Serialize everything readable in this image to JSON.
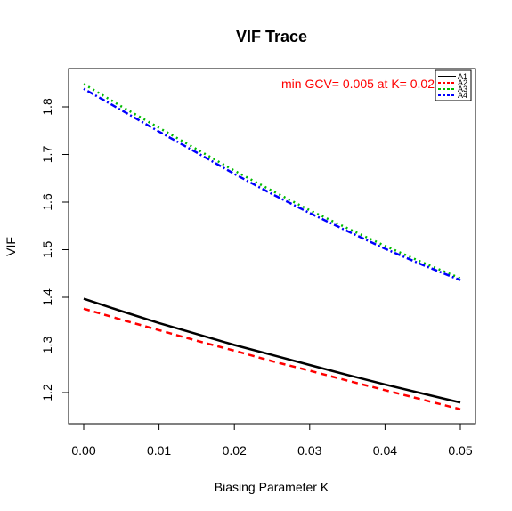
{
  "chart_data": {
    "type": "line",
    "title": "VIF Trace",
    "xlabel": "Biasing Parameter K",
    "ylabel": "VIF",
    "xlim": [
      0.0,
      0.05
    ],
    "ylim": [
      1.16,
      1.85
    ],
    "xticks": [
      "0.00",
      "0.01",
      "0.02",
      "0.03",
      "0.04",
      "0.05"
    ],
    "xtick_values": [
      0.0,
      0.01,
      0.02,
      0.03,
      0.04,
      0.05
    ],
    "yticks": [
      "1.2",
      "1.3",
      "1.4",
      "1.5",
      "1.6",
      "1.7",
      "1.8"
    ],
    "ytick_values": [
      1.2,
      1.3,
      1.4,
      1.5,
      1.6,
      1.7,
      1.8
    ],
    "x": [
      0.0,
      0.005,
      0.01,
      0.015,
      0.02,
      0.025,
      0.03,
      0.035,
      0.04,
      0.045,
      0.05
    ],
    "series": [
      {
        "name": "A1",
        "color": "#000000",
        "dash": "solid",
        "values": [
          1.397,
          1.371,
          1.346,
          1.323,
          1.3,
          1.279,
          1.258,
          1.237,
          1.217,
          1.198,
          1.179
        ]
      },
      {
        "name": "A2",
        "color": "#ff0000",
        "dash": "dashed",
        "values": [
          1.376,
          1.353,
          1.331,
          1.309,
          1.288,
          1.266,
          1.246,
          1.225,
          1.205,
          1.185,
          1.165
        ]
      },
      {
        "name": "A3",
        "color": "#00bb00",
        "dash": "dotted",
        "values": [
          1.848,
          1.801,
          1.756,
          1.711,
          1.666,
          1.624,
          1.583,
          1.545,
          1.508,
          1.473,
          1.44
        ]
      },
      {
        "name": "A4",
        "color": "#0000ff",
        "dash": "dotdash",
        "values": [
          1.838,
          1.793,
          1.748,
          1.704,
          1.659,
          1.617,
          1.577,
          1.539,
          1.502,
          1.468,
          1.436
        ]
      }
    ],
    "vline": {
      "x": 0.025,
      "color": "#ff0000",
      "dash": "dashed"
    },
    "annotation": "min GCV= 0.005 at K= 0.025",
    "annotation_color": "#ff0000",
    "legend_position": "top-right",
    "grid": false
  }
}
